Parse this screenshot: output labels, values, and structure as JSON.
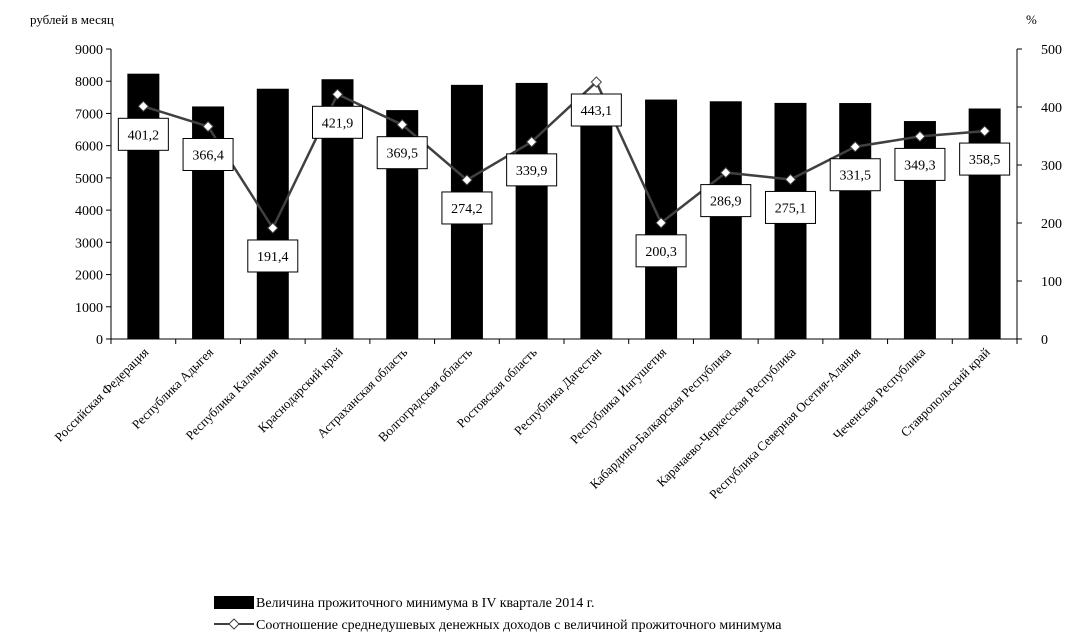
{
  "chart_data": {
    "type": "bar",
    "title": "",
    "ylabel": "рублей в месяц",
    "y2label": "%",
    "ylim": [
      0,
      9000
    ],
    "y2lim": [
      0,
      500
    ],
    "yticks": [
      0,
      1000,
      2000,
      3000,
      4000,
      5000,
      6000,
      7000,
      8000,
      9000
    ],
    "y2ticks": [
      0,
      100,
      200,
      300,
      400,
      500
    ],
    "grid": false,
    "legend_position": "bottom",
    "categories": [
      "Российская Федерация",
      "Республика Адыгея",
      "Республика Калмыкия",
      "Краснодарский край",
      "Астраханская область",
      "Волгоградская область",
      "Ростовская область",
      "Республика Дагестан",
      "Республика Ингушетия",
      "Кабардино-Балкарская Республика",
      "Карачаево-Черкесская Республика",
      "Республика Северная Осетия-Алания",
      "Чеченская Республика",
      "Ставропольский край"
    ],
    "series": [
      {
        "name": "Величина прожиточного минимума в IV квартале 2014 г.",
        "type": "bar",
        "axis": "left",
        "color": "#000000",
        "values": [
          8234,
          7217,
          7767,
          8062,
          7104,
          7887,
          7947,
          7600,
          7431,
          7377,
          7327,
          7323,
          6764,
          7153
        ]
      },
      {
        "name": "Соотношение среднедушевых денежных доходов с величиной прожиточного минимума",
        "type": "line",
        "axis": "right",
        "color": "#404040",
        "values": [
          401.2,
          366.4,
          191.4,
          421.9,
          369.5,
          274.2,
          339.9,
          443.1,
          200.3,
          286.9,
          275.1,
          331.5,
          349.3,
          358.5
        ],
        "data_labels": [
          "401,2",
          "366,4",
          "191,4",
          "421,9",
          "369,5",
          "274,2",
          "339,9",
          "443,1",
          "200,3",
          "286,9",
          "275,1",
          "331,5",
          "349,3",
          "358,5"
        ]
      }
    ]
  }
}
